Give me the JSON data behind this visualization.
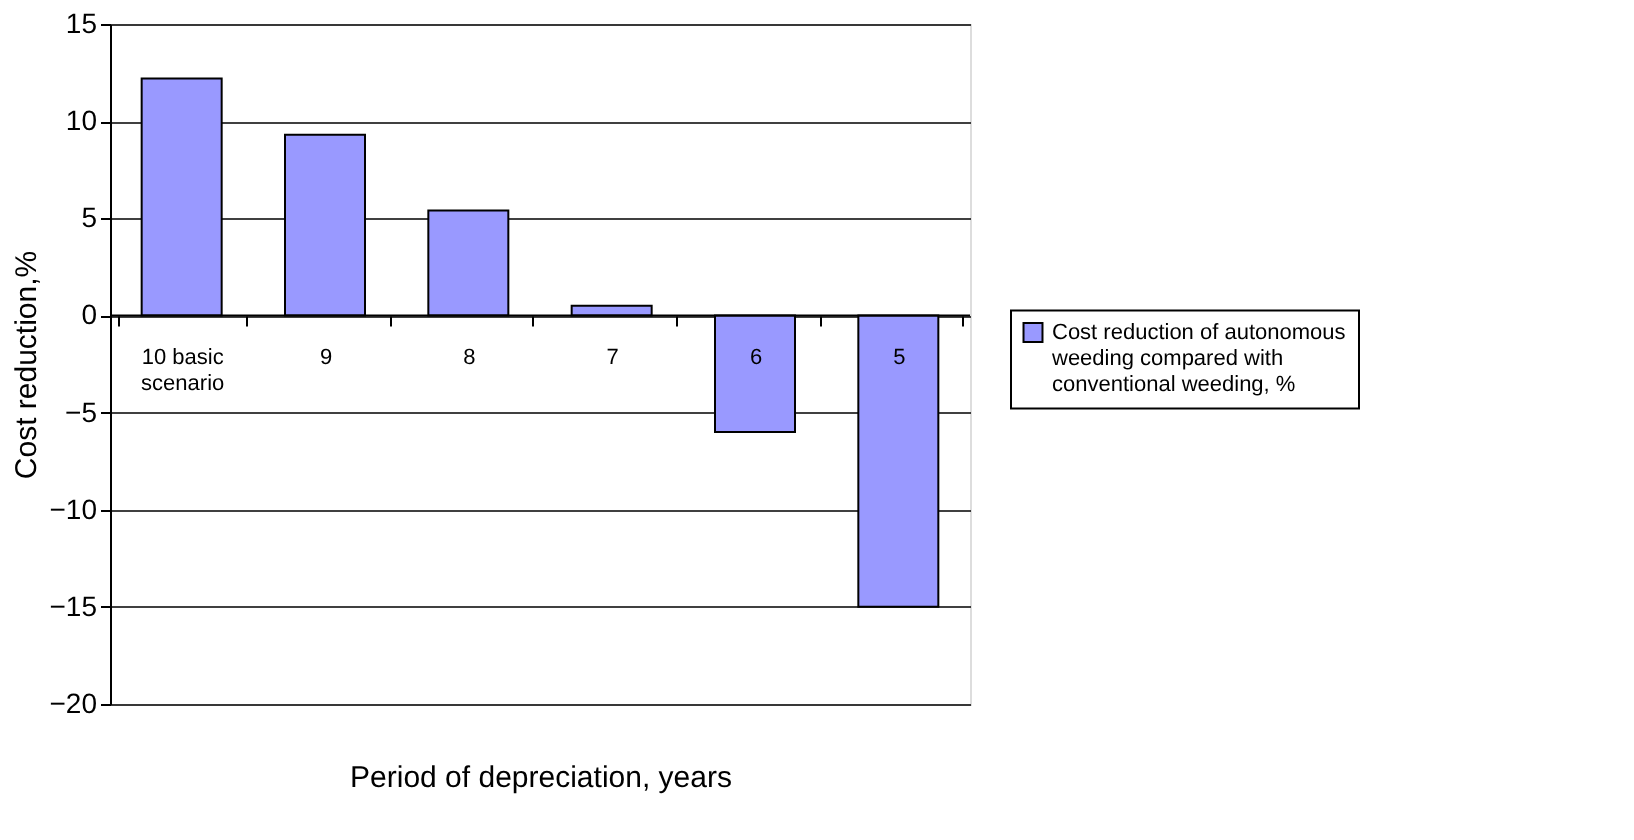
{
  "chart_data": {
    "type": "bar",
    "xlabel": "Period of depreciation, years",
    "ylabel": "Cost reduction,%",
    "categories": [
      "10 basic scenario",
      "9",
      "8",
      "7",
      "6",
      "5"
    ],
    "series": [
      {
        "name": "Cost reduction of autonomous weeding compared with conventional weeding, %",
        "color": "#9999ff",
        "values": [
          12.2,
          9.3,
          5.4,
          0.5,
          -6.0,
          -15.0
        ]
      }
    ],
    "ylim": [
      -20,
      15
    ],
    "yticks": [
      -20,
      -15,
      -10,
      -5,
      0,
      5,
      10,
      15
    ],
    "grid": "y",
    "legend": "right"
  }
}
